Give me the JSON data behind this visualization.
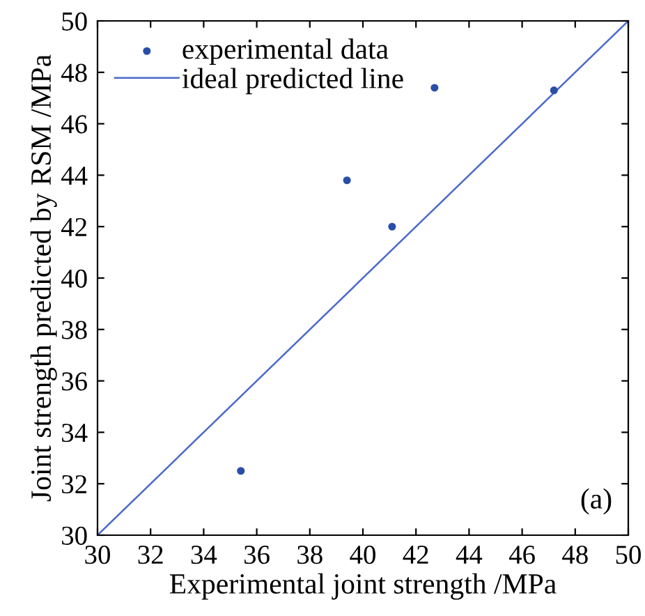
{
  "chart_data": {
    "type": "scatter",
    "xlabel": "Experimental joint strength /MPa",
    "ylabel": "Joint strength predicted by RSM /MPa",
    "series": [
      {
        "name": "experimental data",
        "color": "#2a4fa8",
        "marker": "circle",
        "x": [
          35.4,
          39.4,
          41.1,
          42.7,
          47.2
        ],
        "values": [
          32.5,
          43.8,
          42.0,
          47.4,
          47.3
        ]
      },
      {
        "name": "ideal predicted line",
        "type": "line",
        "color": "#4a6ac8",
        "line_style": "solid",
        "x": [
          30,
          50
        ],
        "values": [
          30,
          50
        ]
      }
    ],
    "xlim": [
      30,
      50
    ],
    "ylim": [
      30,
      50
    ],
    "xticks": [
      30,
      32,
      34,
      36,
      38,
      40,
      42,
      44,
      46,
      48,
      50
    ],
    "yticks": [
      30,
      32,
      34,
      36,
      38,
      40,
      42,
      44,
      46,
      48,
      50
    ],
    "annotations": [
      "(a)"
    ],
    "legend": "top left",
    "grid": false
  }
}
